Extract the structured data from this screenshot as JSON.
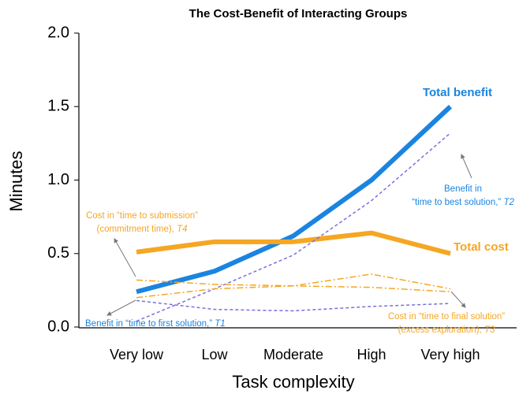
{
  "chart_data": {
    "type": "line",
    "title": "The Cost-Benefit of Interacting Groups",
    "x_label": "Task complexity",
    "y_label": "Minutes",
    "categories": [
      "Very low",
      "Low",
      "Moderate",
      "High",
      "Very high"
    ],
    "ylim": [
      0,
      2
    ],
    "yticks": [
      {
        "value": 0,
        "label": "0.0"
      },
      {
        "value": 0.5,
        "label": "0.5"
      },
      {
        "value": 1,
        "label": "1.0"
      },
      {
        "value": 1.5,
        "label": "1.5"
      },
      {
        "value": 2,
        "label": "2.0"
      }
    ],
    "series": [
      {
        "name": "Total benefit",
        "color": "#1a84e0",
        "style": "solid",
        "width": 6,
        "values": [
          0.24,
          0.38,
          0.62,
          1.0,
          1.5
        ]
      },
      {
        "name": "Total cost",
        "color": "#f5a623",
        "style": "solid",
        "width": 6,
        "values": [
          0.51,
          0.58,
          0.58,
          0.64,
          0.5
        ]
      },
      {
        "color": "#7b6fe0",
        "style": "dashed",
        "width": 1.5,
        "values": [
          0.04,
          0.26,
          0.49,
          0.86,
          1.32
        ]
      },
      {
        "color": "#7b6fe0",
        "style": "dashed",
        "width": 1.5,
        "values": [
          0.18,
          0.12,
          0.11,
          0.14,
          0.16
        ]
      },
      {
        "color": "#f5a623",
        "style": "dashdot",
        "width": 1.5,
        "values": [
          0.32,
          0.29,
          0.28,
          0.27,
          0.24
        ]
      },
      {
        "color": "#f5a623",
        "style": "dashdot",
        "width": 1.5,
        "values": [
          0.2,
          0.26,
          0.28,
          0.36,
          0.26
        ]
      }
    ],
    "annotations": [
      {
        "lines": [
          "Benefit in “time to first solution,”"
        ],
        "tag": "T1",
        "color": "#1a84e0"
      },
      {
        "lines": [
          "Benefit in",
          "“time to best solution,”"
        ],
        "tag": "T2",
        "color": "#1a84e0"
      },
      {
        "lines": [
          "Cost in “time to submission”",
          "(commitment time),"
        ],
        "tag": "T4",
        "color": "#f5a623"
      },
      {
        "lines": [
          "Cost in “time to final solution”",
          "(excess exploration),"
        ],
        "tag": "T3",
        "color": "#f5a623"
      }
    ]
  }
}
